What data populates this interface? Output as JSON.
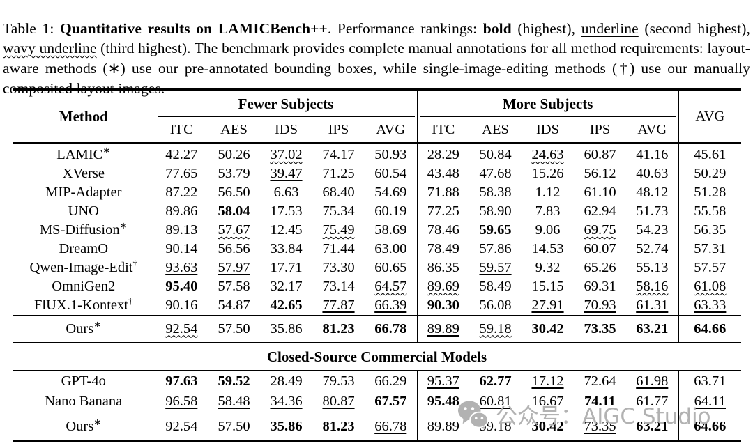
{
  "caption": {
    "segments": [
      {
        "t": "Table 1: ",
        "s": ""
      },
      {
        "t": "Quantitative results on LAMICBench++",
        "s": "b"
      },
      {
        "t": ". Performance rankings: ",
        "s": ""
      },
      {
        "t": "bold",
        "s": "b"
      },
      {
        "t": " (highest), ",
        "s": ""
      },
      {
        "t": "underline",
        "s": "u"
      },
      {
        "t": " (second highest), ",
        "s": ""
      },
      {
        "t": "wavy underline",
        "s": "w"
      },
      {
        "t": " (third highest). The benchmark provides complete manual annotations for all method requirements: layout-aware methods (∗) use our pre-annotated bounding boxes, while single-image-editing methods (†) use our manually composited layout images.",
        "s": ""
      }
    ]
  },
  "table": {
    "col_method": "Method",
    "group1": "Fewer Subjects",
    "group2": "More Subjects",
    "col_avg": "AVG",
    "subcols": [
      "ITC",
      "AES",
      "IDS",
      "IPS",
      "AVG",
      "ITC",
      "AES",
      "IDS",
      "IPS",
      "AVG"
    ],
    "section_header": "Closed-Source Commercial Models",
    "rows_open": [
      {
        "method": "LAMIC",
        "sup": "∗",
        "divider": false,
        "cells": [
          {
            "t": "42.27",
            "s": ""
          },
          {
            "t": "50.26",
            "s": ""
          },
          {
            "t": "37.02",
            "s": "w"
          },
          {
            "t": "74.17",
            "s": ""
          },
          {
            "t": "50.93",
            "s": ""
          },
          {
            "t": "28.29",
            "s": ""
          },
          {
            "t": "50.84",
            "s": ""
          },
          {
            "t": "24.63",
            "s": "w"
          },
          {
            "t": "60.87",
            "s": ""
          },
          {
            "t": "41.16",
            "s": ""
          },
          {
            "t": "45.61",
            "s": ""
          }
        ]
      },
      {
        "method": "XVerse",
        "sup": "",
        "divider": false,
        "cells": [
          {
            "t": "77.65",
            "s": ""
          },
          {
            "t": "53.79",
            "s": ""
          },
          {
            "t": "39.47",
            "s": "u"
          },
          {
            "t": "71.25",
            "s": ""
          },
          {
            "t": "60.54",
            "s": ""
          },
          {
            "t": "43.48",
            "s": ""
          },
          {
            "t": "47.68",
            "s": ""
          },
          {
            "t": "15.26",
            "s": ""
          },
          {
            "t": "56.12",
            "s": ""
          },
          {
            "t": "40.63",
            "s": ""
          },
          {
            "t": "50.29",
            "s": ""
          }
        ]
      },
      {
        "method": "MIP-Adapter",
        "sup": "",
        "divider": false,
        "cells": [
          {
            "t": "87.22",
            "s": ""
          },
          {
            "t": "56.50",
            "s": ""
          },
          {
            "t": "6.63",
            "s": ""
          },
          {
            "t": "68.40",
            "s": ""
          },
          {
            "t": "54.69",
            "s": ""
          },
          {
            "t": "71.88",
            "s": ""
          },
          {
            "t": "58.38",
            "s": ""
          },
          {
            "t": "1.12",
            "s": ""
          },
          {
            "t": "61.10",
            "s": ""
          },
          {
            "t": "48.12",
            "s": ""
          },
          {
            "t": "51.28",
            "s": ""
          }
        ]
      },
      {
        "method": "UNO",
        "sup": "",
        "divider": false,
        "cells": [
          {
            "t": "89.86",
            "s": ""
          },
          {
            "t": "58.04",
            "s": "b"
          },
          {
            "t": "17.53",
            "s": ""
          },
          {
            "t": "75.34",
            "s": ""
          },
          {
            "t": "60.19",
            "s": ""
          },
          {
            "t": "77.25",
            "s": ""
          },
          {
            "t": "58.90",
            "s": ""
          },
          {
            "t": "7.83",
            "s": ""
          },
          {
            "t": "62.94",
            "s": ""
          },
          {
            "t": "51.73",
            "s": ""
          },
          {
            "t": "55.58",
            "s": ""
          }
        ]
      },
      {
        "method": "MS-Diffusion",
        "sup": "∗",
        "divider": false,
        "cells": [
          {
            "t": "89.13",
            "s": ""
          },
          {
            "t": "57.67",
            "s": "w"
          },
          {
            "t": "12.45",
            "s": ""
          },
          {
            "t": "75.49",
            "s": "w"
          },
          {
            "t": "58.69",
            "s": ""
          },
          {
            "t": "78.46",
            "s": ""
          },
          {
            "t": "59.65",
            "s": "b"
          },
          {
            "t": "9.06",
            "s": ""
          },
          {
            "t": "69.75",
            "s": "w"
          },
          {
            "t": "54.23",
            "s": ""
          },
          {
            "t": "56.35",
            "s": ""
          }
        ]
      },
      {
        "method": "DreamO",
        "sup": "",
        "divider": false,
        "cells": [
          {
            "t": "90.14",
            "s": ""
          },
          {
            "t": "56.56",
            "s": ""
          },
          {
            "t": "33.84",
            "s": ""
          },
          {
            "t": "71.44",
            "s": ""
          },
          {
            "t": "63.00",
            "s": ""
          },
          {
            "t": "78.49",
            "s": ""
          },
          {
            "t": "57.86",
            "s": ""
          },
          {
            "t": "14.53",
            "s": ""
          },
          {
            "t": "60.07",
            "s": ""
          },
          {
            "t": "52.74",
            "s": ""
          },
          {
            "t": "57.31",
            "s": ""
          }
        ]
      },
      {
        "method": "Qwen-Image-Edit",
        "sup": "†",
        "divider": false,
        "cells": [
          {
            "t": "93.63",
            "s": "u"
          },
          {
            "t": "57.97",
            "s": "u"
          },
          {
            "t": "17.71",
            "s": ""
          },
          {
            "t": "73.30",
            "s": ""
          },
          {
            "t": "60.65",
            "s": ""
          },
          {
            "t": "86.35",
            "s": ""
          },
          {
            "t": "59.57",
            "s": "u"
          },
          {
            "t": "9.32",
            "s": ""
          },
          {
            "t": "65.26",
            "s": ""
          },
          {
            "t": "55.13",
            "s": ""
          },
          {
            "t": "57.57",
            "s": ""
          }
        ]
      },
      {
        "method": "OmniGen2",
        "sup": "",
        "divider": false,
        "cells": [
          {
            "t": "95.40",
            "s": "b"
          },
          {
            "t": "57.58",
            "s": ""
          },
          {
            "t": "32.17",
            "s": ""
          },
          {
            "t": "73.14",
            "s": ""
          },
          {
            "t": "64.57",
            "s": "w"
          },
          {
            "t": "89.69",
            "s": "w"
          },
          {
            "t": "58.49",
            "s": ""
          },
          {
            "t": "15.15",
            "s": ""
          },
          {
            "t": "69.31",
            "s": ""
          },
          {
            "t": "58.16",
            "s": "w"
          },
          {
            "t": "61.08",
            "s": "w"
          }
        ]
      },
      {
        "method": "FlUX.1-Kontext",
        "sup": "†",
        "divider": false,
        "cells": [
          {
            "t": "90.16",
            "s": ""
          },
          {
            "t": "54.87",
            "s": ""
          },
          {
            "t": "42.65",
            "s": "b"
          },
          {
            "t": "77.87",
            "s": "u"
          },
          {
            "t": "66.39",
            "s": "u"
          },
          {
            "t": "90.30",
            "s": "b"
          },
          {
            "t": "56.08",
            "s": ""
          },
          {
            "t": "27.91",
            "s": "u"
          },
          {
            "t": "70.93",
            "s": "u"
          },
          {
            "t": "61.31",
            "s": "u"
          },
          {
            "t": "63.33",
            "s": "u"
          }
        ]
      },
      {
        "method": "Ours",
        "sup": "∗",
        "divider": true,
        "cells": [
          {
            "t": "92.54",
            "s": "w"
          },
          {
            "t": "57.50",
            "s": ""
          },
          {
            "t": "35.86",
            "s": ""
          },
          {
            "t": "81.23",
            "s": "b"
          },
          {
            "t": "66.78",
            "s": "b"
          },
          {
            "t": "89.89",
            "s": "u"
          },
          {
            "t": "59.18",
            "s": "w"
          },
          {
            "t": "30.42",
            "s": "b"
          },
          {
            "t": "73.35",
            "s": "b"
          },
          {
            "t": "63.21",
            "s": "b"
          },
          {
            "t": "64.66",
            "s": "b"
          }
        ]
      }
    ],
    "rows_closed": [
      {
        "method": "GPT-4o",
        "sup": "",
        "divider": false,
        "cells": [
          {
            "t": "97.63",
            "s": "b"
          },
          {
            "t": "59.52",
            "s": "b"
          },
          {
            "t": "28.49",
            "s": ""
          },
          {
            "t": "79.53",
            "s": ""
          },
          {
            "t": "66.29",
            "s": ""
          },
          {
            "t": "95.37",
            "s": "u"
          },
          {
            "t": "62.77",
            "s": "b"
          },
          {
            "t": "17.12",
            "s": "u"
          },
          {
            "t": "72.64",
            "s": ""
          },
          {
            "t": "61.98",
            "s": "u"
          },
          {
            "t": "63.71",
            "s": ""
          }
        ]
      },
      {
        "method": "Nano Banana",
        "sup": "",
        "divider": false,
        "cells": [
          {
            "t": "96.58",
            "s": "u"
          },
          {
            "t": "58.48",
            "s": "u"
          },
          {
            "t": "34.36",
            "s": "u"
          },
          {
            "t": "80.87",
            "s": "u"
          },
          {
            "t": "67.57",
            "s": "b"
          },
          {
            "t": "95.48",
            "s": "b"
          },
          {
            "t": "60.81",
            "s": "u"
          },
          {
            "t": "16.67",
            "s": ""
          },
          {
            "t": "74.11",
            "s": "b"
          },
          {
            "t": "61.77",
            "s": ""
          },
          {
            "t": "64.11",
            "s": "u"
          }
        ]
      },
      {
        "method": "Ours",
        "sup": "∗",
        "divider": true,
        "cells": [
          {
            "t": "92.54",
            "s": ""
          },
          {
            "t": "57.50",
            "s": ""
          },
          {
            "t": "35.86",
            "s": "b"
          },
          {
            "t": "81.23",
            "s": "b"
          },
          {
            "t": "66.78",
            "s": "u"
          },
          {
            "t": "89.89",
            "s": ""
          },
          {
            "t": "59.18",
            "s": ""
          },
          {
            "t": "30.42",
            "s": "b"
          },
          {
            "t": "73.35",
            "s": "u"
          },
          {
            "t": "63.21",
            "s": "b"
          },
          {
            "t": "64.66",
            "s": "b"
          }
        ]
      }
    ]
  },
  "watermark": {
    "text": "公众号：AIGC Studio",
    "color": "#b2b2b2"
  }
}
